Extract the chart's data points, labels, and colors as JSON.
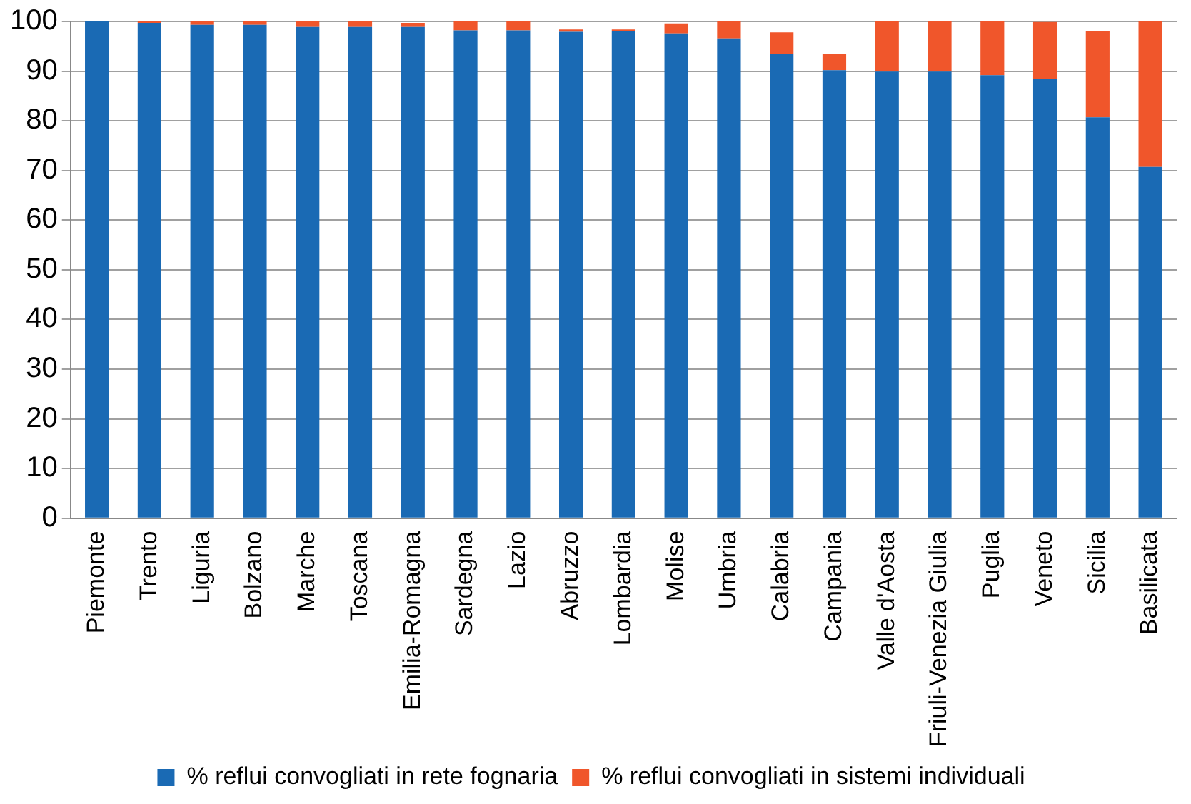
{
  "chart_data": {
    "type": "bar",
    "stacked": true,
    "categories": [
      "Piemonte",
      "Trento",
      "Liguria",
      "Bolzano",
      "Marche",
      "Toscana",
      "Emilia-Romagna",
      "Sardegna",
      "Lazio",
      "Abruzzo",
      "Lombardia",
      "Molise",
      "Umbria",
      "Calabria",
      "Campania",
      "Valle d'Aosta",
      "Friuli-Venezia Giulia",
      "Puglia",
      "Veneto",
      "Sicilia",
      "Basilicata"
    ],
    "series": [
      {
        "name": "% reflui convogliati in rete fognaria",
        "color": "#1a6ab4",
        "values": [
          100,
          99.7,
          99.3,
          99.3,
          98.9,
          98.9,
          98.9,
          98.2,
          98.2,
          97.9,
          98.0,
          97.6,
          96.6,
          93.4,
          90.2,
          89.9,
          89.9,
          89.2,
          88.5,
          80.7,
          70.7
        ]
      },
      {
        "name": "% reflui convogliati in sistemi individuali",
        "color": "#f0562b",
        "values": [
          0,
          0.3,
          0.7,
          0.7,
          1.1,
          1.1,
          0.8,
          1.8,
          1.8,
          0.5,
          0.4,
          2.0,
          3.4,
          4.4,
          3.2,
          10.1,
          10.1,
          10.8,
          11.4,
          17.4,
          29.3
        ]
      }
    ],
    "ylim": [
      0,
      100
    ],
    "yticks": [
      0,
      10,
      20,
      30,
      40,
      50,
      60,
      70,
      80,
      90,
      100
    ],
    "grid": "y",
    "legend": "bottom"
  }
}
